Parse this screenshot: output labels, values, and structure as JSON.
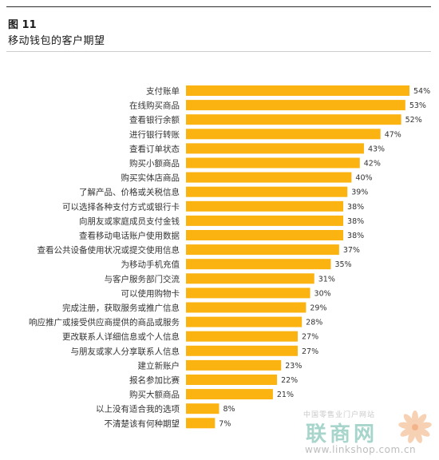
{
  "figure": {
    "number": "图 11",
    "title": "移动钱包的客户期望"
  },
  "watermark": {
    "site_name": "中国零售业门户网站",
    "brand": "联商网",
    "url": "www.linkshop.com.cn"
  },
  "colors": {
    "bar": "#fbb312",
    "label": "#333333"
  },
  "chart_data": {
    "type": "bar",
    "orientation": "horizontal",
    "categories": [
      "支付账单",
      "在线购买商品",
      "查看银行余额",
      "进行银行转账",
      "查看订单状态",
      "购买小额商品",
      "购买实体店商品",
      "了解产品、价格或关税信息",
      "可以选择各种支付方式或银行卡",
      "向朋友或家庭成员支付金钱",
      "查看移动电话账户使用数据",
      "查看公共设备使用状况或提交使用信息",
      "为移动手机充值",
      "与客户服务部门交流",
      "可以使用购物卡",
      "完成注册，获取服务或推广信息",
      "响应推广或接受供应商提供的商品或服务",
      "更改联系人详细信息或个人信息",
      "与朋友或家人分享联系人信息",
      "建立新账户",
      "报名参加比赛",
      "购买大额商品",
      "以上没有适合我的选项",
      "不清楚该有何种期望"
    ],
    "values": [
      54,
      53,
      52,
      47,
      43,
      42,
      40,
      39,
      38,
      38,
      38,
      37,
      35,
      31,
      30,
      29,
      28,
      27,
      27,
      23,
      22,
      21,
      8,
      7
    ],
    "value_labels": [
      "54%",
      "53%",
      "52%",
      "47%",
      "43%",
      "42%",
      "40%",
      "39%",
      "38%",
      "38%",
      "38%",
      "37%",
      "35%",
      "31%",
      "30%",
      "29%",
      "28%",
      "27%",
      "27%",
      "23%",
      "22%",
      "21%",
      "8%",
      "7%"
    ],
    "unit": "%",
    "xlim": [
      0,
      54
    ],
    "grid": false,
    "legend": "none"
  }
}
